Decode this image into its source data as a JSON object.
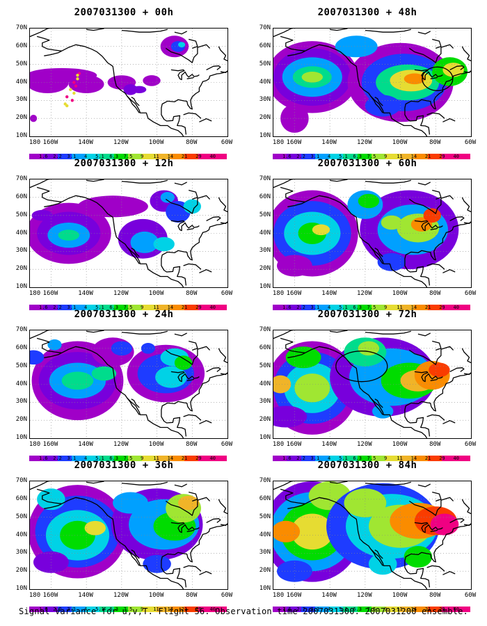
{
  "caption": "Signal Variance for u,v,T. Flight 56. Observation time 2007031300. 2007031200 ensemble.",
  "x_ticks": [
    "180",
    "160W",
    "140W",
    "120W",
    "100W",
    "80W",
    "60W"
  ],
  "y_ticks": [
    "70N",
    "60N",
    "50N",
    "40N",
    "30N",
    "20N",
    "10N"
  ],
  "colorbar": {
    "labels": [
      "1.6",
      "2.2",
      "3.1",
      "4",
      "5.1",
      "6.3",
      "7.5",
      "9",
      "11",
      "14",
      "21",
      "29",
      "40"
    ],
    "colors": [
      "#a000c8",
      "#7800dc",
      "#1e3cff",
      "#00a0ff",
      "#00d2e6",
      "#00dc8c",
      "#00dc00",
      "#a0e632",
      "#e6dc32",
      "#f0b428",
      "#fa8c00",
      "#fa3c00",
      "#f00082",
      "#f00082"
    ]
  },
  "panels": [
    {
      "id": "p00",
      "title": "2007031300 + 00h",
      "forecast_hour": 0
    },
    {
      "id": "p48",
      "title": "2007031300 + 48h",
      "forecast_hour": 48
    },
    {
      "id": "p12",
      "title": "2007031300 + 12h",
      "forecast_hour": 12
    },
    {
      "id": "p60",
      "title": "2007031300 + 60h",
      "forecast_hour": 60
    },
    {
      "id": "p24",
      "title": "2007031300 + 24h",
      "forecast_hour": 24
    },
    {
      "id": "p72",
      "title": "2007031300 + 72h",
      "forecast_hour": 72
    },
    {
      "id": "p36",
      "title": "2007031300 + 36h",
      "forecast_hour": 36
    },
    {
      "id": "p84",
      "title": "2007031300 + 84h",
      "forecast_hour": 84
    }
  ]
}
